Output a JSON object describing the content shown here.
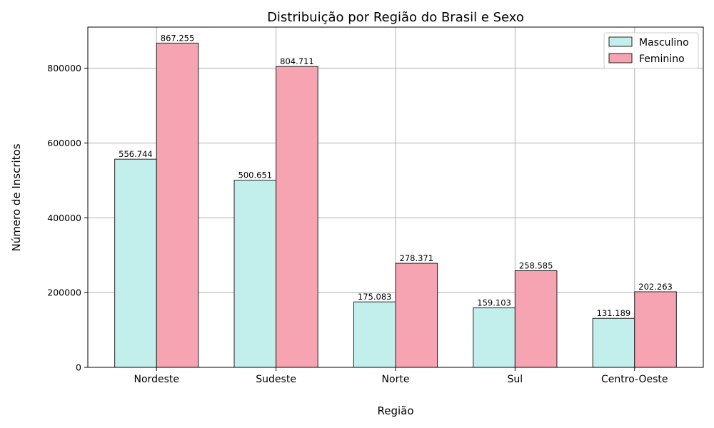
{
  "chart_data": {
    "type": "bar",
    "title": "Distribuição por Região do Brasil e Sexo",
    "xlabel": "Região",
    "ylabel": "Número de Inscritos",
    "categories": [
      "Nordeste",
      "Sudeste",
      "Norte",
      "Sul",
      "Centro-Oeste"
    ],
    "series": [
      {
        "name": "Masculino",
        "color": "#c2eeec",
        "values": [
          556744,
          500651,
          175083,
          159103,
          131189
        ],
        "labels": [
          "556.744",
          "500.651",
          "175.083",
          "159.103",
          "131.189"
        ]
      },
      {
        "name": "Feminino",
        "color": "#f6a3b2",
        "values": [
          867255,
          804711,
          278371,
          258585,
          202263
        ],
        "labels": [
          "867.255",
          "804.711",
          "278.371",
          "258.585",
          "202.263"
        ]
      }
    ],
    "ylim": [
      0,
      910000
    ],
    "yticks": [
      0,
      200000,
      400000,
      600000,
      800000
    ],
    "ytick_labels": [
      "0",
      "200000",
      "400000",
      "600000",
      "800000"
    ],
    "grid": true,
    "legend": "top-right"
  }
}
